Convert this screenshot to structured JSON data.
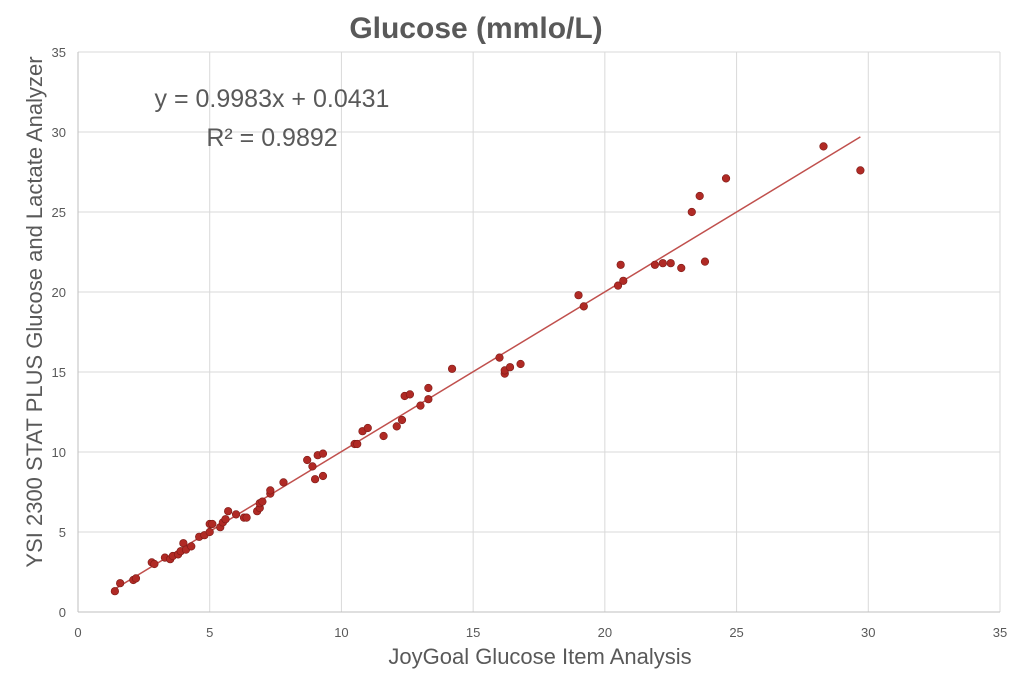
{
  "chart_data": {
    "type": "scatter",
    "title": "Glucose (mmlo/L)",
    "xlabel": "JoyGoal Glucose Item Analysis",
    "ylabel": "YSI 2300 STAT PLUS Glucose and Lactate Analyzer",
    "xlim": [
      0,
      35
    ],
    "ylim": [
      0,
      35
    ],
    "x_ticks": [
      "0",
      "5",
      "10",
      "15",
      "20",
      "25",
      "30",
      "35"
    ],
    "y_ticks": [
      "0",
      "5",
      "10",
      "15",
      "20",
      "25",
      "30",
      "35"
    ],
    "grid": true,
    "legend": "none",
    "trendline": {
      "slope": 0.9983,
      "intercept": 0.0431,
      "x_range": [
        1.4,
        29.7
      ],
      "equation_label": "y = 0.9983x + 0.0431",
      "r2_label": "R² = 0.9892"
    },
    "colors": {
      "marker": "#b02a25",
      "trendline": "#c0504d",
      "text": "#595959",
      "grid": "#d9d9d9"
    },
    "series": [
      {
        "points": [
          [
            1.4,
            1.3
          ],
          [
            1.6,
            1.8
          ],
          [
            2.1,
            2.0
          ],
          [
            2.2,
            2.1
          ],
          [
            2.8,
            3.1
          ],
          [
            2.9,
            3.0
          ],
          [
            3.3,
            3.4
          ],
          [
            3.5,
            3.3
          ],
          [
            3.6,
            3.5
          ],
          [
            3.8,
            3.6
          ],
          [
            3.9,
            3.8
          ],
          [
            4.0,
            4.3
          ],
          [
            4.1,
            3.9
          ],
          [
            4.3,
            4.1
          ],
          [
            4.6,
            4.7
          ],
          [
            4.8,
            4.8
          ],
          [
            5.0,
            5.0
          ],
          [
            5.0,
            5.5
          ],
          [
            5.1,
            5.5
          ],
          [
            5.4,
            5.3
          ],
          [
            5.5,
            5.6
          ],
          [
            5.6,
            5.8
          ],
          [
            5.7,
            6.3
          ],
          [
            6.0,
            6.1
          ],
          [
            6.3,
            5.9
          ],
          [
            6.4,
            5.9
          ],
          [
            6.8,
            6.3
          ],
          [
            6.9,
            6.5
          ],
          [
            6.9,
            6.8
          ],
          [
            7.0,
            6.9
          ],
          [
            7.3,
            7.4
          ],
          [
            7.3,
            7.6
          ],
          [
            7.8,
            8.1
          ],
          [
            8.7,
            9.5
          ],
          [
            8.9,
            9.1
          ],
          [
            9.0,
            8.3
          ],
          [
            9.1,
            9.8
          ],
          [
            9.3,
            9.9
          ],
          [
            9.3,
            8.5
          ],
          [
            10.5,
            10.5
          ],
          [
            10.6,
            10.5
          ],
          [
            10.8,
            11.3
          ],
          [
            11.0,
            11.5
          ],
          [
            11.6,
            11.0
          ],
          [
            12.1,
            11.6
          ],
          [
            12.3,
            12.0
          ],
          [
            12.4,
            13.5
          ],
          [
            12.6,
            13.6
          ],
          [
            13.0,
            12.9
          ],
          [
            13.3,
            13.3
          ],
          [
            13.3,
            14.0
          ],
          [
            14.2,
            15.2
          ],
          [
            16.0,
            15.9
          ],
          [
            16.2,
            14.9
          ],
          [
            16.2,
            15.1
          ],
          [
            16.4,
            15.3
          ],
          [
            16.8,
            15.5
          ],
          [
            19.0,
            19.8
          ],
          [
            19.2,
            19.1
          ],
          [
            20.5,
            20.4
          ],
          [
            20.6,
            21.7
          ],
          [
            20.7,
            20.7
          ],
          [
            21.9,
            21.7
          ],
          [
            22.2,
            21.8
          ],
          [
            22.5,
            21.8
          ],
          [
            22.9,
            21.5
          ],
          [
            23.3,
            25.0
          ],
          [
            23.6,
            26.0
          ],
          [
            23.8,
            21.9
          ],
          [
            24.6,
            27.1
          ],
          [
            28.3,
            29.1
          ],
          [
            29.7,
            27.6
          ]
        ]
      }
    ]
  }
}
